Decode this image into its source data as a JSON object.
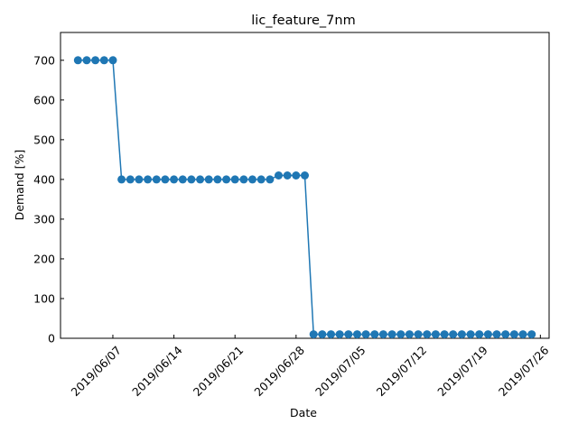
{
  "chart_data": {
    "type": "line",
    "title": "lic_feature_7nm",
    "xlabel": "Date",
    "ylabel": "Demand [%]",
    "ylim": [
      0,
      770
    ],
    "yticks": [
      0,
      100,
      200,
      300,
      400,
      500,
      600,
      700
    ],
    "xlim": [
      "2019-06-01",
      "2019-07-27"
    ],
    "xticks": [
      "2019/06/07",
      "2019/06/14",
      "2019/06/21",
      "2019/06/28",
      "2019/07/05",
      "2019/07/12",
      "2019/07/19",
      "2019/07/26"
    ],
    "grid": false,
    "legend": "none",
    "marker": "circle",
    "color": "#1f77b4",
    "x": [
      "2019-06-03",
      "2019-06-04",
      "2019-06-05",
      "2019-06-06",
      "2019-06-07",
      "2019-06-08",
      "2019-06-09",
      "2019-06-10",
      "2019-06-11",
      "2019-06-12",
      "2019-06-13",
      "2019-06-14",
      "2019-06-15",
      "2019-06-16",
      "2019-06-17",
      "2019-06-18",
      "2019-06-19",
      "2019-06-20",
      "2019-06-21",
      "2019-06-22",
      "2019-06-23",
      "2019-06-24",
      "2019-06-25",
      "2019-06-26",
      "2019-06-27",
      "2019-06-28",
      "2019-06-29",
      "2019-06-30",
      "2019-07-01",
      "2019-07-02",
      "2019-07-03",
      "2019-07-04",
      "2019-07-05",
      "2019-07-06",
      "2019-07-07",
      "2019-07-08",
      "2019-07-09",
      "2019-07-10",
      "2019-07-11",
      "2019-07-12",
      "2019-07-13",
      "2019-07-14",
      "2019-07-15",
      "2019-07-16",
      "2019-07-17",
      "2019-07-18",
      "2019-07-19",
      "2019-07-20",
      "2019-07-21",
      "2019-07-22",
      "2019-07-23",
      "2019-07-24",
      "2019-07-25"
    ],
    "y": [
      700,
      700,
      700,
      700,
      700,
      400,
      400,
      400,
      400,
      400,
      400,
      400,
      400,
      400,
      400,
      400,
      400,
      400,
      400,
      400,
      400,
      400,
      400,
      410,
      410,
      410,
      410,
      10,
      10,
      10,
      10,
      10,
      10,
      10,
      10,
      10,
      10,
      10,
      10,
      10,
      10,
      10,
      10,
      10,
      10,
      10,
      10,
      10,
      10,
      10,
      10,
      10,
      10
    ]
  }
}
